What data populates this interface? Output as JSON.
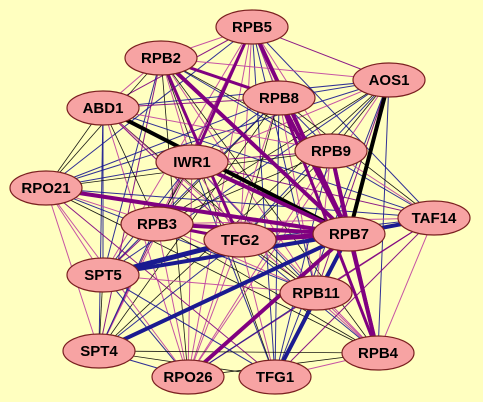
{
  "network": {
    "node_fill": "#f7a3a3",
    "node_stroke": "#7a2020",
    "edge_colors": {
      "thin_black": "#000000",
      "blue": "#1a1a90",
      "purple": "#800080",
      "magenta": "#c040a0"
    },
    "nodes": [
      {
        "id": "RPB5",
        "label": "RPB5"
      },
      {
        "id": "RPB2",
        "label": "RPB2"
      },
      {
        "id": "AOS1",
        "label": "AOS1"
      },
      {
        "id": "RPB8",
        "label": "RPB8"
      },
      {
        "id": "ABD1",
        "label": "ABD1"
      },
      {
        "id": "RPB9",
        "label": "RPB9"
      },
      {
        "id": "IWR1",
        "label": "IWR1"
      },
      {
        "id": "RPO21",
        "label": "RPO21"
      },
      {
        "id": "TAF14",
        "label": "TAF14"
      },
      {
        "id": "RPB3",
        "label": "RPB3"
      },
      {
        "id": "TFG2",
        "label": "TFG2"
      },
      {
        "id": "RPB7",
        "label": "RPB7"
      },
      {
        "id": "SPT5",
        "label": "SPT5"
      },
      {
        "id": "RPB11",
        "label": "RPB11"
      },
      {
        "id": "SPT4",
        "label": "SPT4"
      },
      {
        "id": "RPB4",
        "label": "RPB4"
      },
      {
        "id": "RPO26",
        "label": "RPO26"
      },
      {
        "id": "TFG1",
        "label": "TFG1"
      }
    ],
    "heavy_edges": [
      {
        "from": "ABD1",
        "to": "RPB7",
        "color": "thin_black",
        "weight": 4
      },
      {
        "from": "AOS1",
        "to": "RPB7",
        "color": "thin_black",
        "weight": 4
      },
      {
        "from": "RPB5",
        "to": "RPB7",
        "color": "purple",
        "weight": 4
      },
      {
        "from": "RPB2",
        "to": "RPB7",
        "color": "purple",
        "weight": 4
      },
      {
        "from": "RPB8",
        "to": "RPB7",
        "color": "purple",
        "weight": 4
      },
      {
        "from": "RPB9",
        "to": "RPB7",
        "color": "purple",
        "weight": 4
      },
      {
        "from": "IWR1",
        "to": "RPB7",
        "color": "purple",
        "weight": 4
      },
      {
        "from": "RPO21",
        "to": "RPB7",
        "color": "purple",
        "weight": 4
      },
      {
        "from": "RPB3",
        "to": "RPB7",
        "color": "purple",
        "weight": 4
      },
      {
        "from": "TFG2",
        "to": "RPB7",
        "color": "purple",
        "weight": 5
      },
      {
        "from": "SPT5",
        "to": "TFG2",
        "color": "blue",
        "weight": 5
      },
      {
        "from": "SPT5",
        "to": "RPB7",
        "color": "blue",
        "weight": 4
      },
      {
        "from": "SPT4",
        "to": "RPB7",
        "color": "blue",
        "weight": 4
      },
      {
        "from": "TFG1",
        "to": "RPB7",
        "color": "blue",
        "weight": 4
      },
      {
        "from": "RPO26",
        "to": "RPB7",
        "color": "purple",
        "weight": 4
      },
      {
        "from": "RPB4",
        "to": "RPB7",
        "color": "purple",
        "weight": 4
      },
      {
        "from": "TAF14",
        "to": "RPB7",
        "color": "blue",
        "weight": 4
      },
      {
        "from": "RPB2",
        "to": "RPB8",
        "color": "purple",
        "weight": 3
      },
      {
        "from": "RPB5",
        "to": "IWR1",
        "color": "purple",
        "weight": 3
      },
      {
        "from": "RPB2",
        "to": "TFG2",
        "color": "purple",
        "weight": 3
      },
      {
        "from": "RPB3",
        "to": "TFG2",
        "color": "purple",
        "weight": 3
      },
      {
        "from": "RPB8",
        "to": "RPB4",
        "color": "purple",
        "weight": 3
      },
      {
        "from": "RPB9",
        "to": "RPB4",
        "color": "purple",
        "weight": 3
      }
    ]
  }
}
